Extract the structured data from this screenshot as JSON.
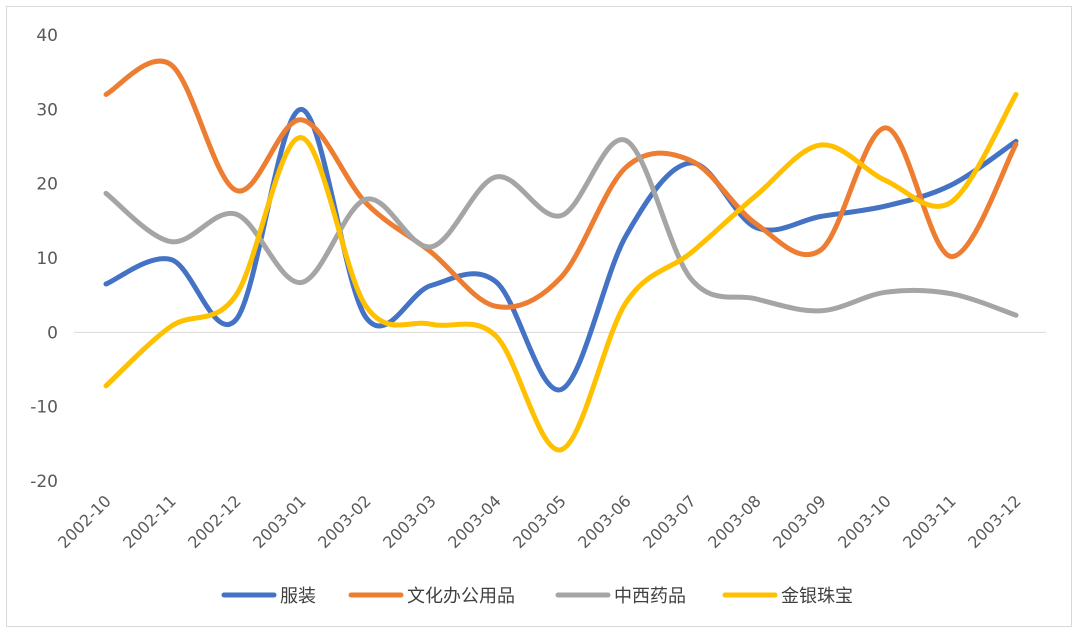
{
  "chart_data": {
    "type": "line",
    "title": "",
    "xlabel": "",
    "ylabel": "",
    "ylim": [
      -20,
      40
    ],
    "yticks": [
      40,
      30,
      20,
      10,
      0,
      -10,
      -20
    ],
    "grid": false,
    "smooth": true,
    "legend_position": "bottom",
    "categories": [
      "2002-10",
      "2002-11",
      "2002-12",
      "2003-01",
      "2003-02",
      "2003-03",
      "2003-04",
      "2003-05",
      "2003-06",
      "2003-07",
      "2003-08",
      "2003-09",
      "2003-10",
      "2003-11",
      "2003-12"
    ],
    "series": [
      {
        "name": "服装",
        "color": "#4472C4",
        "values": [
          6.5,
          9.8,
          1.7,
          30.0,
          2.0,
          6.3,
          6.8,
          -7.7,
          13.0,
          22.8,
          14.1,
          15.6,
          17.0,
          19.8,
          25.7
        ]
      },
      {
        "name": "文化办公用品",
        "color": "#ED7D31",
        "values": [
          32.0,
          36.0,
          19.1,
          28.6,
          17.4,
          10.8,
          3.5,
          7.4,
          22.2,
          23.1,
          14.6,
          11.1,
          27.5,
          10.2,
          25.3
        ]
      },
      {
        "name": "中西药品",
        "color": "#A5A5A5",
        "values": [
          18.7,
          12.2,
          15.9,
          6.7,
          17.9,
          11.5,
          20.9,
          15.7,
          25.8,
          7.2,
          4.5,
          2.9,
          5.4,
          5.2,
          2.3
        ]
      },
      {
        "name": "金银珠宝",
        "color": "#FFC000",
        "values": [
          -7.2,
          0.8,
          5.0,
          26.2,
          3.5,
          1.1,
          -0.5,
          -15.8,
          4.0,
          10.7,
          18.4,
          25.2,
          20.4,
          17.5,
          32.0
        ]
      }
    ]
  }
}
